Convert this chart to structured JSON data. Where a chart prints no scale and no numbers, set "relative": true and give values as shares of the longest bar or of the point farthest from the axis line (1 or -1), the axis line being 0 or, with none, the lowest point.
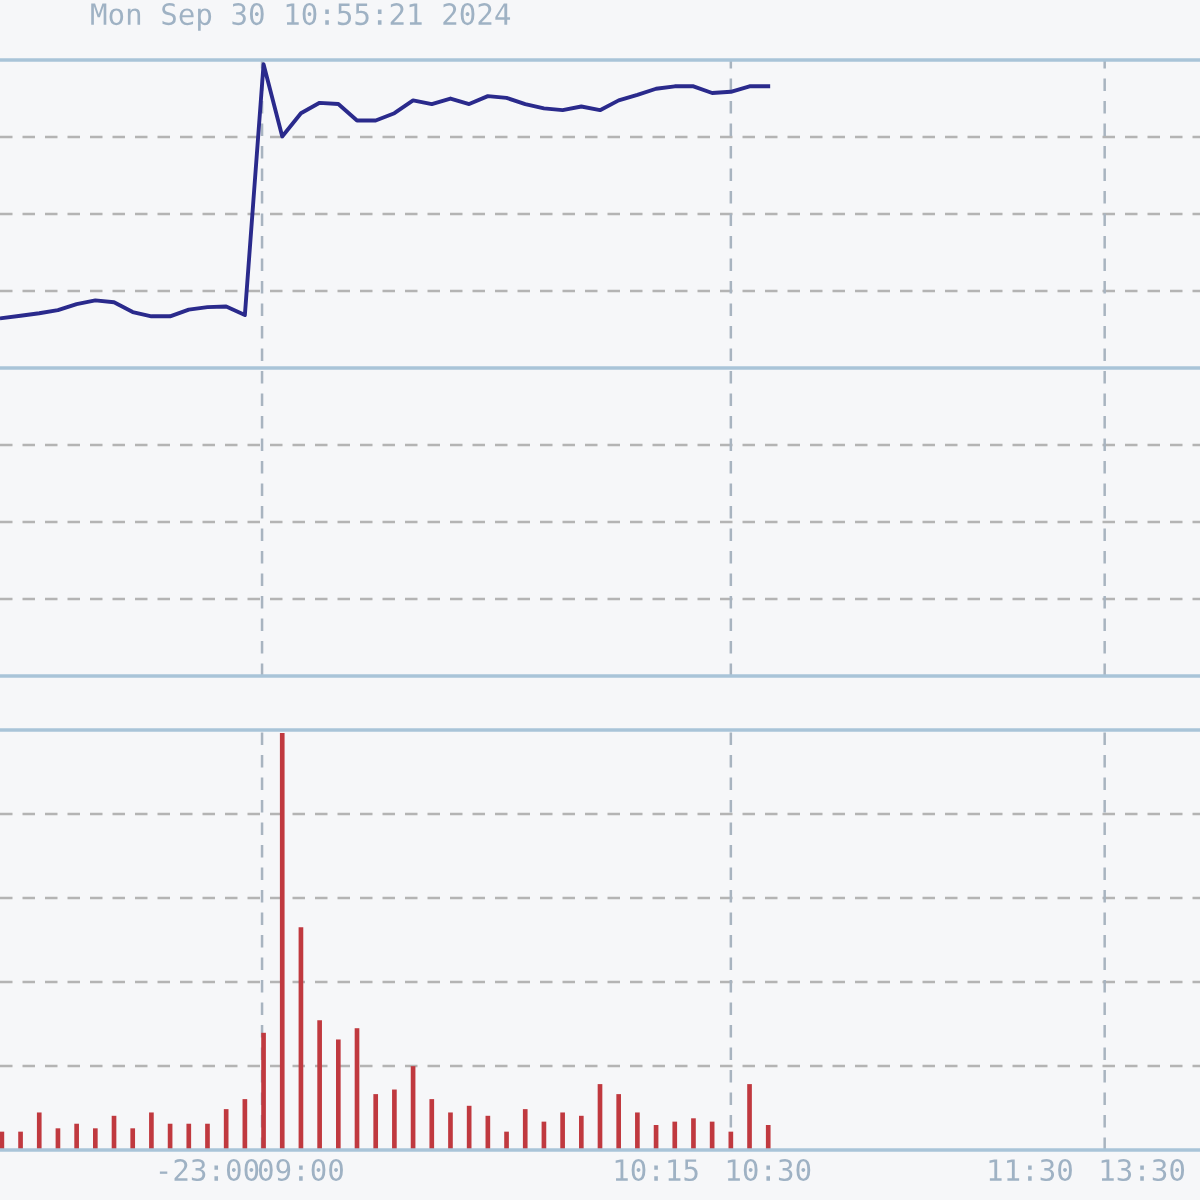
{
  "chart_data": [
    {
      "type": "line",
      "title": "Mon Sep 30 10:55:21 2024",
      "relative": true,
      "grid": true,
      "line_style": "solid",
      "marker": "none",
      "series": [
        {
          "color": "#2a2a8c",
          "values": [
            0.585,
            0.589,
            0.593,
            0.598,
            0.608,
            0.614,
            0.611,
            0.595,
            0.588,
            0.588,
            0.599,
            0.603,
            0.604,
            0.59,
            1.0,
            0.882,
            0.92,
            0.937,
            0.935,
            0.908,
            0.908,
            0.92,
            0.941,
            0.935,
            0.944,
            0.935,
            0.948,
            0.945,
            0.935,
            0.928,
            0.925,
            0.931,
            0.925,
            0.941,
            0.95,
            0.96,
            0.964,
            0.964,
            0.953,
            0.955,
            0.964,
            0.964,
            null,
            null,
            null,
            null,
            null,
            null,
            null,
            null,
            null,
            null,
            null,
            null,
            null,
            null,
            null,
            null,
            null,
            null,
            null,
            null,
            null,
            null,
            null
          ]
        }
      ],
      "ref_lines": [
        {
          "axis": "y",
          "value": 0.5035,
          "color": "#a9c4d8",
          "line_style": "solid"
        }
      ]
    },
    {
      "type": "bar",
      "relative": true,
      "grid": true,
      "categories": [
        null,
        null,
        null,
        null,
        null,
        null,
        null,
        null,
        null,
        null,
        null,
        "-23:00",
        null,
        null,
        null,
        null,
        "09:00",
        null,
        null,
        null,
        null,
        null,
        null,
        null,
        null,
        null,
        null,
        null,
        null,
        null,
        null,
        null,
        null,
        null,
        null,
        "10:15",
        null,
        null,
        null,
        null,
        null,
        "10:30",
        null,
        null,
        null,
        null,
        null,
        null,
        null,
        null,
        null,
        null,
        null,
        null,
        null,
        "11:30",
        null,
        null,
        null,
        null,
        null,
        "13:30",
        null,
        null,
        null
      ],
      "series": [
        {
          "color": "#c0393f",
          "values": [
            0.044,
            0.044,
            0.09,
            0.052,
            0.063,
            0.052,
            0.082,
            0.052,
            0.09,
            0.063,
            0.063,
            0.063,
            0.098,
            0.122,
            0.281,
            1.0,
            0.534,
            0.311,
            0.265,
            0.292,
            0.134,
            0.145,
            0.201,
            0.122,
            0.09,
            0.106,
            0.082,
            0.044,
            0.098,
            0.068,
            0.09,
            0.082,
            0.158,
            0.134,
            0.09,
            0.06,
            0.068,
            0.076,
            0.068,
            0.044,
            0.158,
            0.06,
            null,
            null,
            null,
            null,
            null,
            null,
            null,
            null,
            null,
            null,
            null,
            null,
            null,
            null,
            null,
            null,
            null,
            null,
            null,
            null,
            null,
            null,
            null
          ]
        }
      ]
    }
  ]
}
